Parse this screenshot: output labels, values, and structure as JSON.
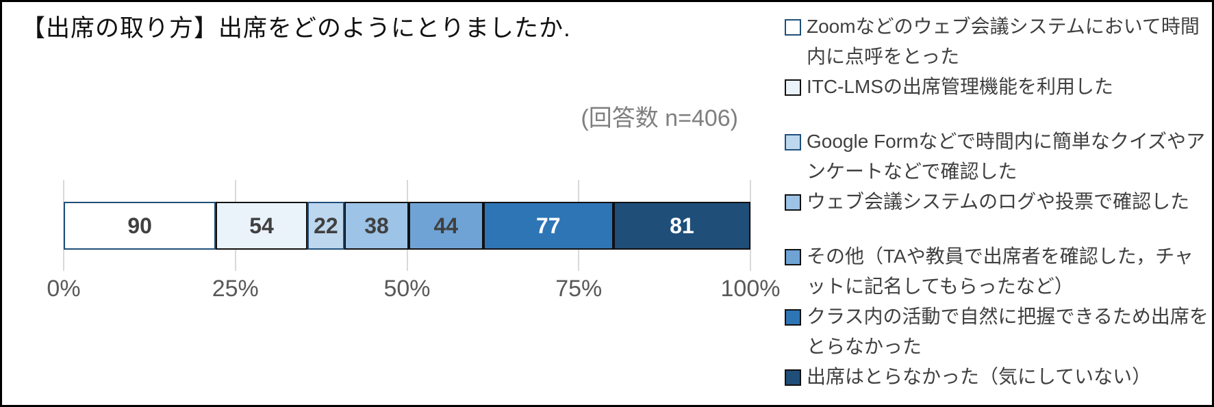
{
  "title": "【出席の取り方】出席をどのようにとりましたか.",
  "note": "(回答数 n=406)",
  "chart_data": {
    "type": "bar",
    "subtype": "horizontal-stacked-100pct",
    "title": "【出席の取り方】出席をどのようにとりましたか.",
    "annotation": "(回答数 n=406)",
    "total_responses": 406,
    "x_ticks": [
      "0%",
      "25%",
      "50%",
      "75%",
      "100%"
    ],
    "xlim": [
      0,
      100
    ],
    "grid": true,
    "legend_position": "right",
    "segments": [
      {
        "label": "Zoomなどのウェブ会議システムにおいて時間内に点呼をとった",
        "value": 90,
        "fill": "#FFFFFF",
        "border": "#1F4E79",
        "value_color": "#404040"
      },
      {
        "label": "ITC-LMSの出席管理機能を利用した",
        "value": 54,
        "fill": "#EAF2FA",
        "border": "#111111",
        "value_color": "#404040"
      },
      {
        "label": "Google Formなどで時間内に簡単なクイズやアンケートなどで確認した",
        "value": 22,
        "fill": "#BDD7EE",
        "border": "#1F4E79",
        "value_color": "#404040"
      },
      {
        "label": "ウェブ会議システムのログや投票で確認した",
        "value": 38,
        "fill": "#9DC3E6",
        "border": "#111111",
        "value_color": "#404040"
      },
      {
        "label": "その他（TAや教員で出席者を確認した，チャットに記名してもらったなど）",
        "value": 44,
        "fill": "#6FA3D6",
        "border": "#111111",
        "value_color": "#404040"
      },
      {
        "label": "クラス内の活動で自然に把握できるため出席をとらなかった",
        "value": 77,
        "fill": "#2E75B6",
        "border": "#111111",
        "value_color": "#FFFFFF"
      },
      {
        "label": "出席はとらなかった（気にしていない）",
        "value": 81,
        "fill": "#1F4E79",
        "border": "#111111",
        "value_color": "#FFFFFF"
      }
    ]
  }
}
